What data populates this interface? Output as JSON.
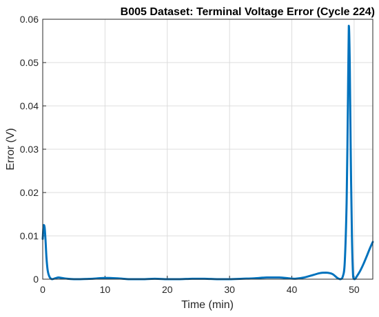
{
  "chart_data": {
    "type": "line",
    "title": "B005 Dataset: Terminal Voltage Error (Cycle 224)",
    "xlabel": "Time (min)",
    "ylabel": "Error (V)",
    "xlim": [
      0,
      53
    ],
    "ylim": [
      0,
      0.06
    ],
    "xticks": [
      0,
      10,
      20,
      30,
      40,
      50
    ],
    "yticks": [
      0,
      0.01,
      0.02,
      0.03,
      0.04,
      0.05,
      0.06
    ],
    "xtick_labels": [
      "0",
      "10",
      "20",
      "30",
      "40",
      "50"
    ],
    "ytick_labels": [
      "0",
      "0.01",
      "0.02",
      "0.03",
      "0.04",
      "0.05",
      "0.06"
    ],
    "grid": true,
    "line_color": "#0072BD",
    "series": [
      {
        "x": [
          0,
          0.15,
          0.3,
          0.45,
          0.6,
          0.8,
          1.1,
          1.5,
          2,
          2.5,
          3,
          4,
          5,
          6,
          8,
          10,
          12,
          14,
          16,
          18,
          20,
          22,
          24,
          26,
          28,
          30,
          32,
          34,
          36,
          38,
          39.5,
          40.5,
          42,
          43.5,
          44.5,
          45.5,
          46.5,
          47.3,
          47.8,
          48.2,
          48.5,
          48.8,
          49.0,
          49.15,
          49.3,
          49.45,
          49.65,
          49.85,
          50.1,
          50.5,
          51,
          51.5,
          52,
          52.5,
          53
        ],
        "y": [
          0.0093,
          0.0125,
          0.012,
          0.009,
          0.005,
          0.002,
          0.0005,
          0.0,
          0.0002,
          0.0004,
          0.0003,
          0.0001,
          0.0,
          0.0,
          0.0001,
          0.0003,
          0.0002,
          0.0,
          0.0,
          0.0001,
          0.0,
          0.0,
          0.0001,
          0.0001,
          0.0,
          0.0,
          0.0001,
          0.0002,
          0.0004,
          0.0004,
          0.0002,
          0.0001,
          0.0004,
          0.001,
          0.0014,
          0.0015,
          0.0012,
          0.0003,
          0.0,
          0.0007,
          0.004,
          0.018,
          0.04,
          0.0585,
          0.05,
          0.03,
          0.01,
          0.0005,
          0.0,
          0.0008,
          0.002,
          0.0035,
          0.0052,
          0.007,
          0.0086
        ]
      }
    ]
  }
}
